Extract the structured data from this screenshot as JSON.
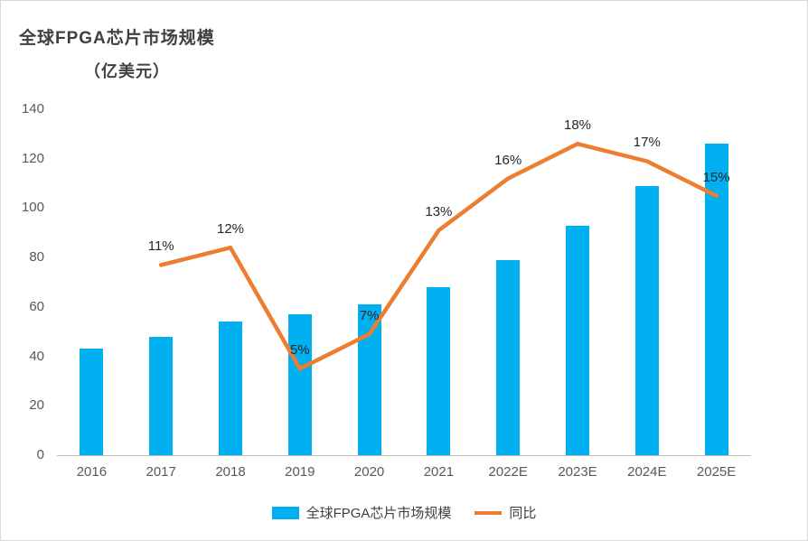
{
  "title": "全球FPGA芯片市场规模",
  "subtitle": "（亿美元）",
  "legend": {
    "bars": "全球FPGA芯片市场规模",
    "line": "同比"
  },
  "colors": {
    "bar": "#00b0f0",
    "line": "#ed7d31",
    "axis": "#bfbfbf",
    "text": "#404040",
    "tick_text": "#595959"
  },
  "chart_data": {
    "type": "bar",
    "subtype": "bar+line combo",
    "title": "全球FPGA芯片市场规模（亿美元）",
    "categories": [
      "2016",
      "2017",
      "2018",
      "2019",
      "2020",
      "2021",
      "2022E",
      "2023E",
      "2024E",
      "2025E"
    ],
    "series": [
      {
        "name": "全球FPGA芯片市场规模",
        "type": "bar",
        "axis": "left",
        "values": [
          43,
          48,
          54,
          57,
          61,
          68,
          79,
          93,
          109,
          126
        ]
      },
      {
        "name": "同比",
        "type": "line",
        "axis": "right",
        "values": [
          null,
          11,
          12,
          5,
          7,
          13,
          16,
          18,
          17,
          15
        ],
        "labels": [
          "",
          "11%",
          "12%",
          "5%",
          "7%",
          "13%",
          "16%",
          "18%",
          "17%",
          "15%"
        ]
      }
    ],
    "xlabel": "",
    "ylabel": "亿美元",
    "y_left": {
      "min": 0,
      "max": 140,
      "ticks": [
        0,
        20,
        40,
        60,
        80,
        100,
        120,
        140
      ]
    },
    "y_right": {
      "min": 0,
      "max": 20,
      "visible": false
    },
    "grid": false,
    "legend_position": "bottom"
  }
}
